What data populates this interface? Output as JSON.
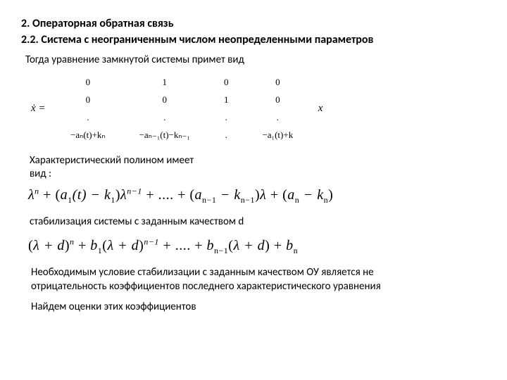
{
  "headings": {
    "h1": "2. Операторная обратная связь",
    "h2": "2.2. Система с неограниченным числом неопределенными параметров"
  },
  "texts": {
    "intro": "Тогда уравнение замкнутой системы примет вид",
    "char_label_1": "Характеристический полином имеет",
    "char_label_2": "вид :",
    "stab": "cтабилизация системы с заданным качеством d",
    "cond_1": "Необходимым условие стабилизации с заданным качеством ОУ является не отрицательность коэффициентов последнего характеристического уравнения",
    "cond_2": "Найдем оценки этих коэффициентов"
  },
  "matrix": {
    "lhs": "ẋ =",
    "rows": [
      [
        "0",
        "1",
        "0",
        "0"
      ],
      [
        "0",
        "0",
        "1",
        "0"
      ],
      [
        ".",
        ".",
        ".",
        "."
      ],
      [
        "−aₙ(t)+kₙ",
        "−aₙ₋₁(t)−kₙ₋₁",
        ".",
        "−a₁(t)+k"
      ]
    ],
    "rhs": "x"
  },
  "formulas": {
    "poly1_html": "λ<sup>n</sup> <span class='upright'>+ (</span>a<sub>1</sub>(t) − k<sub>1</sub><span class='upright'>)</span>λ<sup>n−1</sup> <span class='upright'>+ .... + (</span>a<sub>n−1</sub> − k<sub>n−1</sub><span class='upright'>)</span>λ <span class='upright'>+ (</span>a<sub>n</sub> − k<sub>n</sub><span class='upright'>)</span>",
    "poly2_html": "<span class='upright'>(</span>λ + d<span class='upright'>)</span><sup>n</sup> <span class='upright'>+</span> b<sub>1</sub><span class='upright'>(</span>λ + d<span class='upright'>)</span><sup>n−1</sup> <span class='upright'>+ .... +</span> b<sub>n−1</sub><span class='upright'>(</span>λ + d<span class='upright'>)</span> <span class='upright'>+</span> b<sub>n</sub>"
  }
}
